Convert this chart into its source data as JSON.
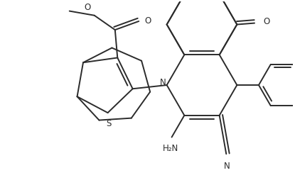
{
  "bg_color": "#ffffff",
  "line_color": "#2b2b2b",
  "lw": 1.4,
  "fs": 8.5,
  "fig_w": 4.15,
  "fig_h": 2.55,
  "xlim": [
    0,
    415
  ],
  "ylim": [
    0,
    255
  ]
}
